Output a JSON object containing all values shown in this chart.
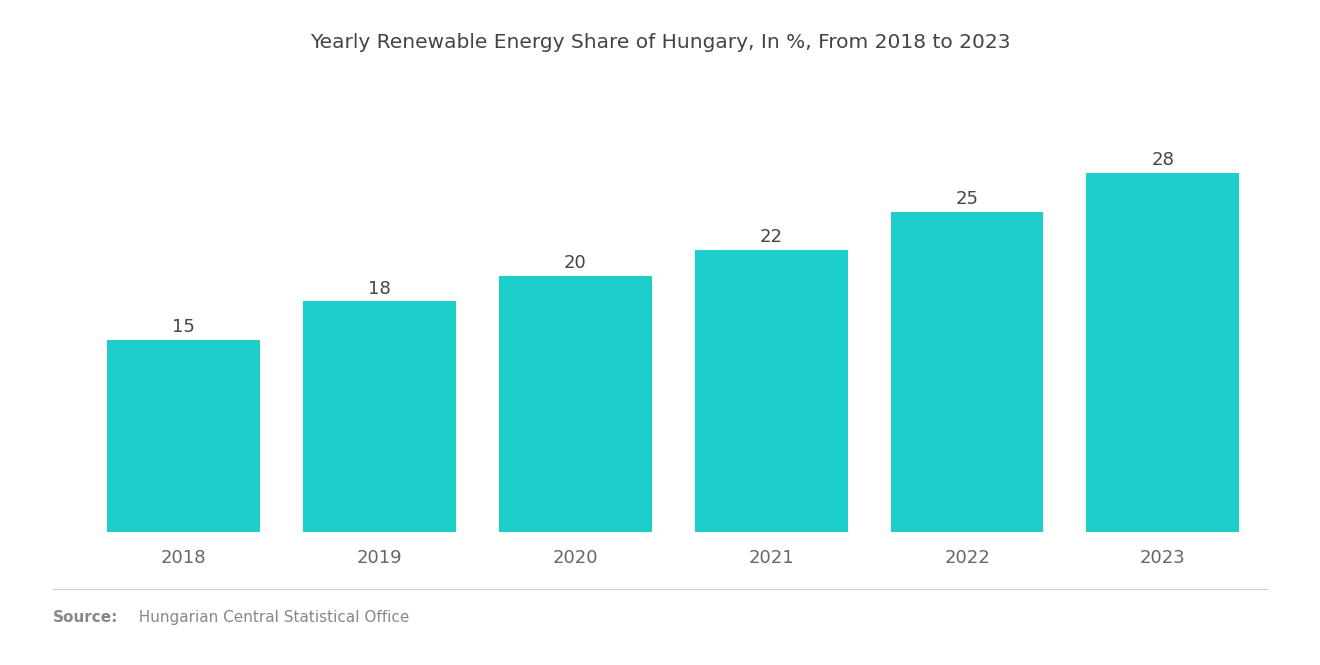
{
  "title": "Yearly Renewable Energy Share of Hungary, In %, From 2018 to 2023",
  "categories": [
    "2018",
    "2019",
    "2020",
    "2021",
    "2022",
    "2023"
  ],
  "values": [
    15,
    18,
    20,
    22,
    25,
    28
  ],
  "bar_color": "#1ECECA",
  "background_color": "#ffffff",
  "title_fontsize": 14.5,
  "label_fontsize": 13,
  "value_fontsize": 13,
  "ylim": [
    0,
    34
  ],
  "bar_width": 0.78,
  "source_bold": "Source:",
  "source_normal": "  Hungarian Central Statistical Office",
  "source_fontsize": 11,
  "source_color": "#888888",
  "value_color": "#444444",
  "tick_color": "#666666",
  "title_color": "#444444",
  "separator_color": "#cccccc"
}
